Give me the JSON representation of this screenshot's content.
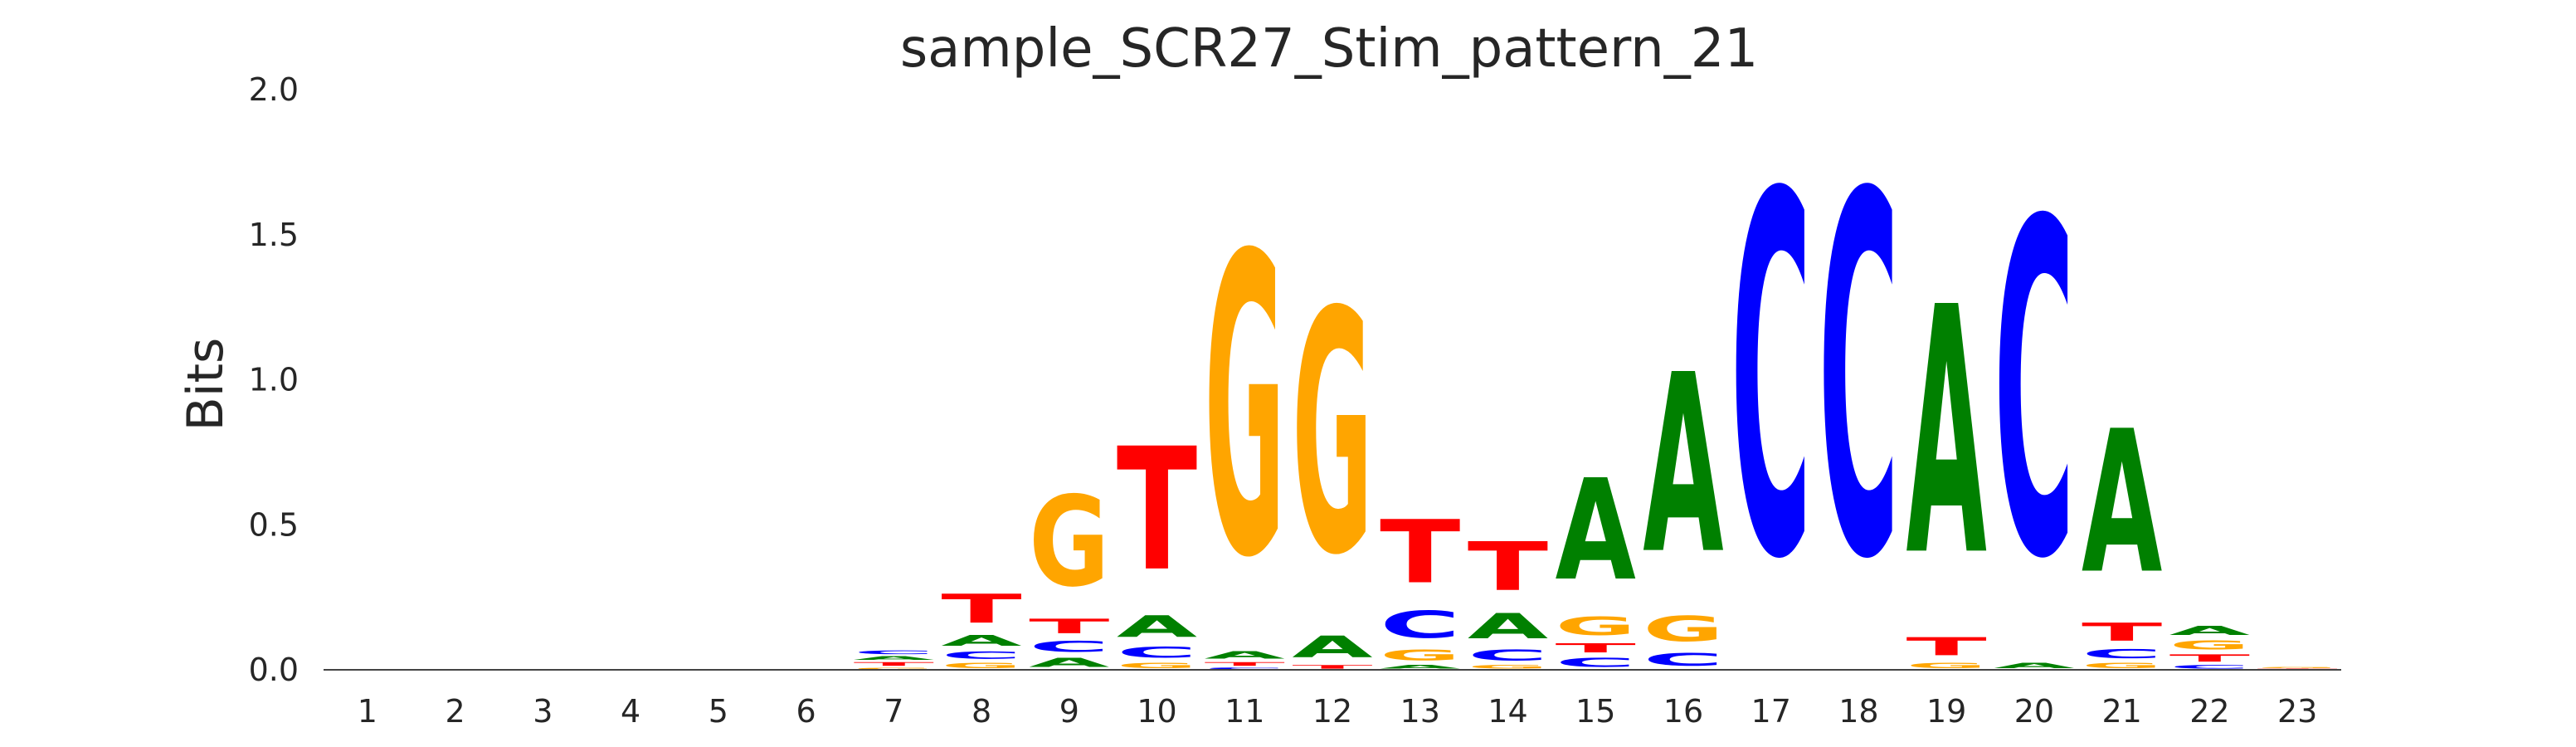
{
  "chart_data": {
    "type": "sequence-logo",
    "title": "sample_SCR27_Stim_pattern_21",
    "xlabel": "",
    "ylabel": "Bits",
    "ylim": [
      0,
      2.0
    ],
    "yticks": [
      "0.0",
      "0.5",
      "1.0",
      "1.5",
      "2.0"
    ],
    "positions": [
      "1",
      "2",
      "3",
      "4",
      "5",
      "6",
      "7",
      "8",
      "9",
      "10",
      "11",
      "12",
      "13",
      "14",
      "15",
      "16",
      "17",
      "18",
      "19",
      "20",
      "21",
      "22",
      "23"
    ],
    "letter_colors": {
      "A": "#008000",
      "C": "#0000ff",
      "G": "#ffa500",
      "T": "#ff0000"
    },
    "grid": false,
    "stacks": [
      [],
      [],
      [],
      [],
      [],
      [],
      [
        [
          "G",
          0.01
        ],
        [
          "T",
          0.02
        ],
        [
          "A",
          0.02
        ],
        [
          "C",
          0.02
        ]
      ],
      [
        [
          "G",
          0.03
        ],
        [
          "C",
          0.04
        ],
        [
          "A",
          0.06
        ],
        [
          "T",
          0.16
        ]
      ],
      [
        [
          "A",
          0.05
        ],
        [
          "C",
          0.06
        ],
        [
          "T",
          0.08
        ],
        [
          "G",
          0.5
        ]
      ],
      [
        [
          "G",
          0.03
        ],
        [
          "C",
          0.06
        ],
        [
          "A",
          0.12
        ],
        [
          "T",
          0.68
        ]
      ],
      [
        [
          "C",
          0.01
        ],
        [
          "T",
          0.02
        ],
        [
          "A",
          0.04
        ],
        [
          "G",
          1.66
        ]
      ],
      [
        [
          "T",
          0.02
        ],
        [
          "A",
          0.12
        ],
        [
          "G",
          1.34
        ]
      ],
      [
        [
          "A",
          0.02
        ],
        [
          "G",
          0.06
        ],
        [
          "C",
          0.15
        ],
        [
          "T",
          0.35
        ]
      ],
      [
        [
          "G",
          0.02
        ],
        [
          "C",
          0.06
        ],
        [
          "A",
          0.14
        ],
        [
          "T",
          0.27
        ]
      ],
      [
        [
          "C",
          0.05
        ],
        [
          "T",
          0.05
        ],
        [
          "G",
          0.1
        ],
        [
          "A",
          0.56
        ]
      ],
      [
        [
          "C",
          0.07
        ],
        [
          "G",
          0.14
        ],
        [
          "A",
          0.99
        ]
      ],
      [
        [
          "C",
          2.0
        ]
      ],
      [
        [
          "C",
          2.0
        ]
      ],
      [
        [
          "G",
          0.03
        ],
        [
          "T",
          0.1
        ],
        [
          "A",
          1.37
        ]
      ],
      [
        [
          "A",
          0.03
        ],
        [
          "C",
          1.85
        ]
      ],
      [
        [
          "G",
          0.03
        ],
        [
          "C",
          0.05
        ],
        [
          "T",
          0.1
        ],
        [
          "A",
          0.79
        ]
      ],
      [
        [
          "C",
          0.02
        ],
        [
          "T",
          0.04
        ],
        [
          "G",
          0.05
        ],
        [
          "A",
          0.05
        ]
      ],
      [
        [
          "T",
          0.005
        ],
        [
          "G",
          0.005
        ]
      ]
    ]
  }
}
